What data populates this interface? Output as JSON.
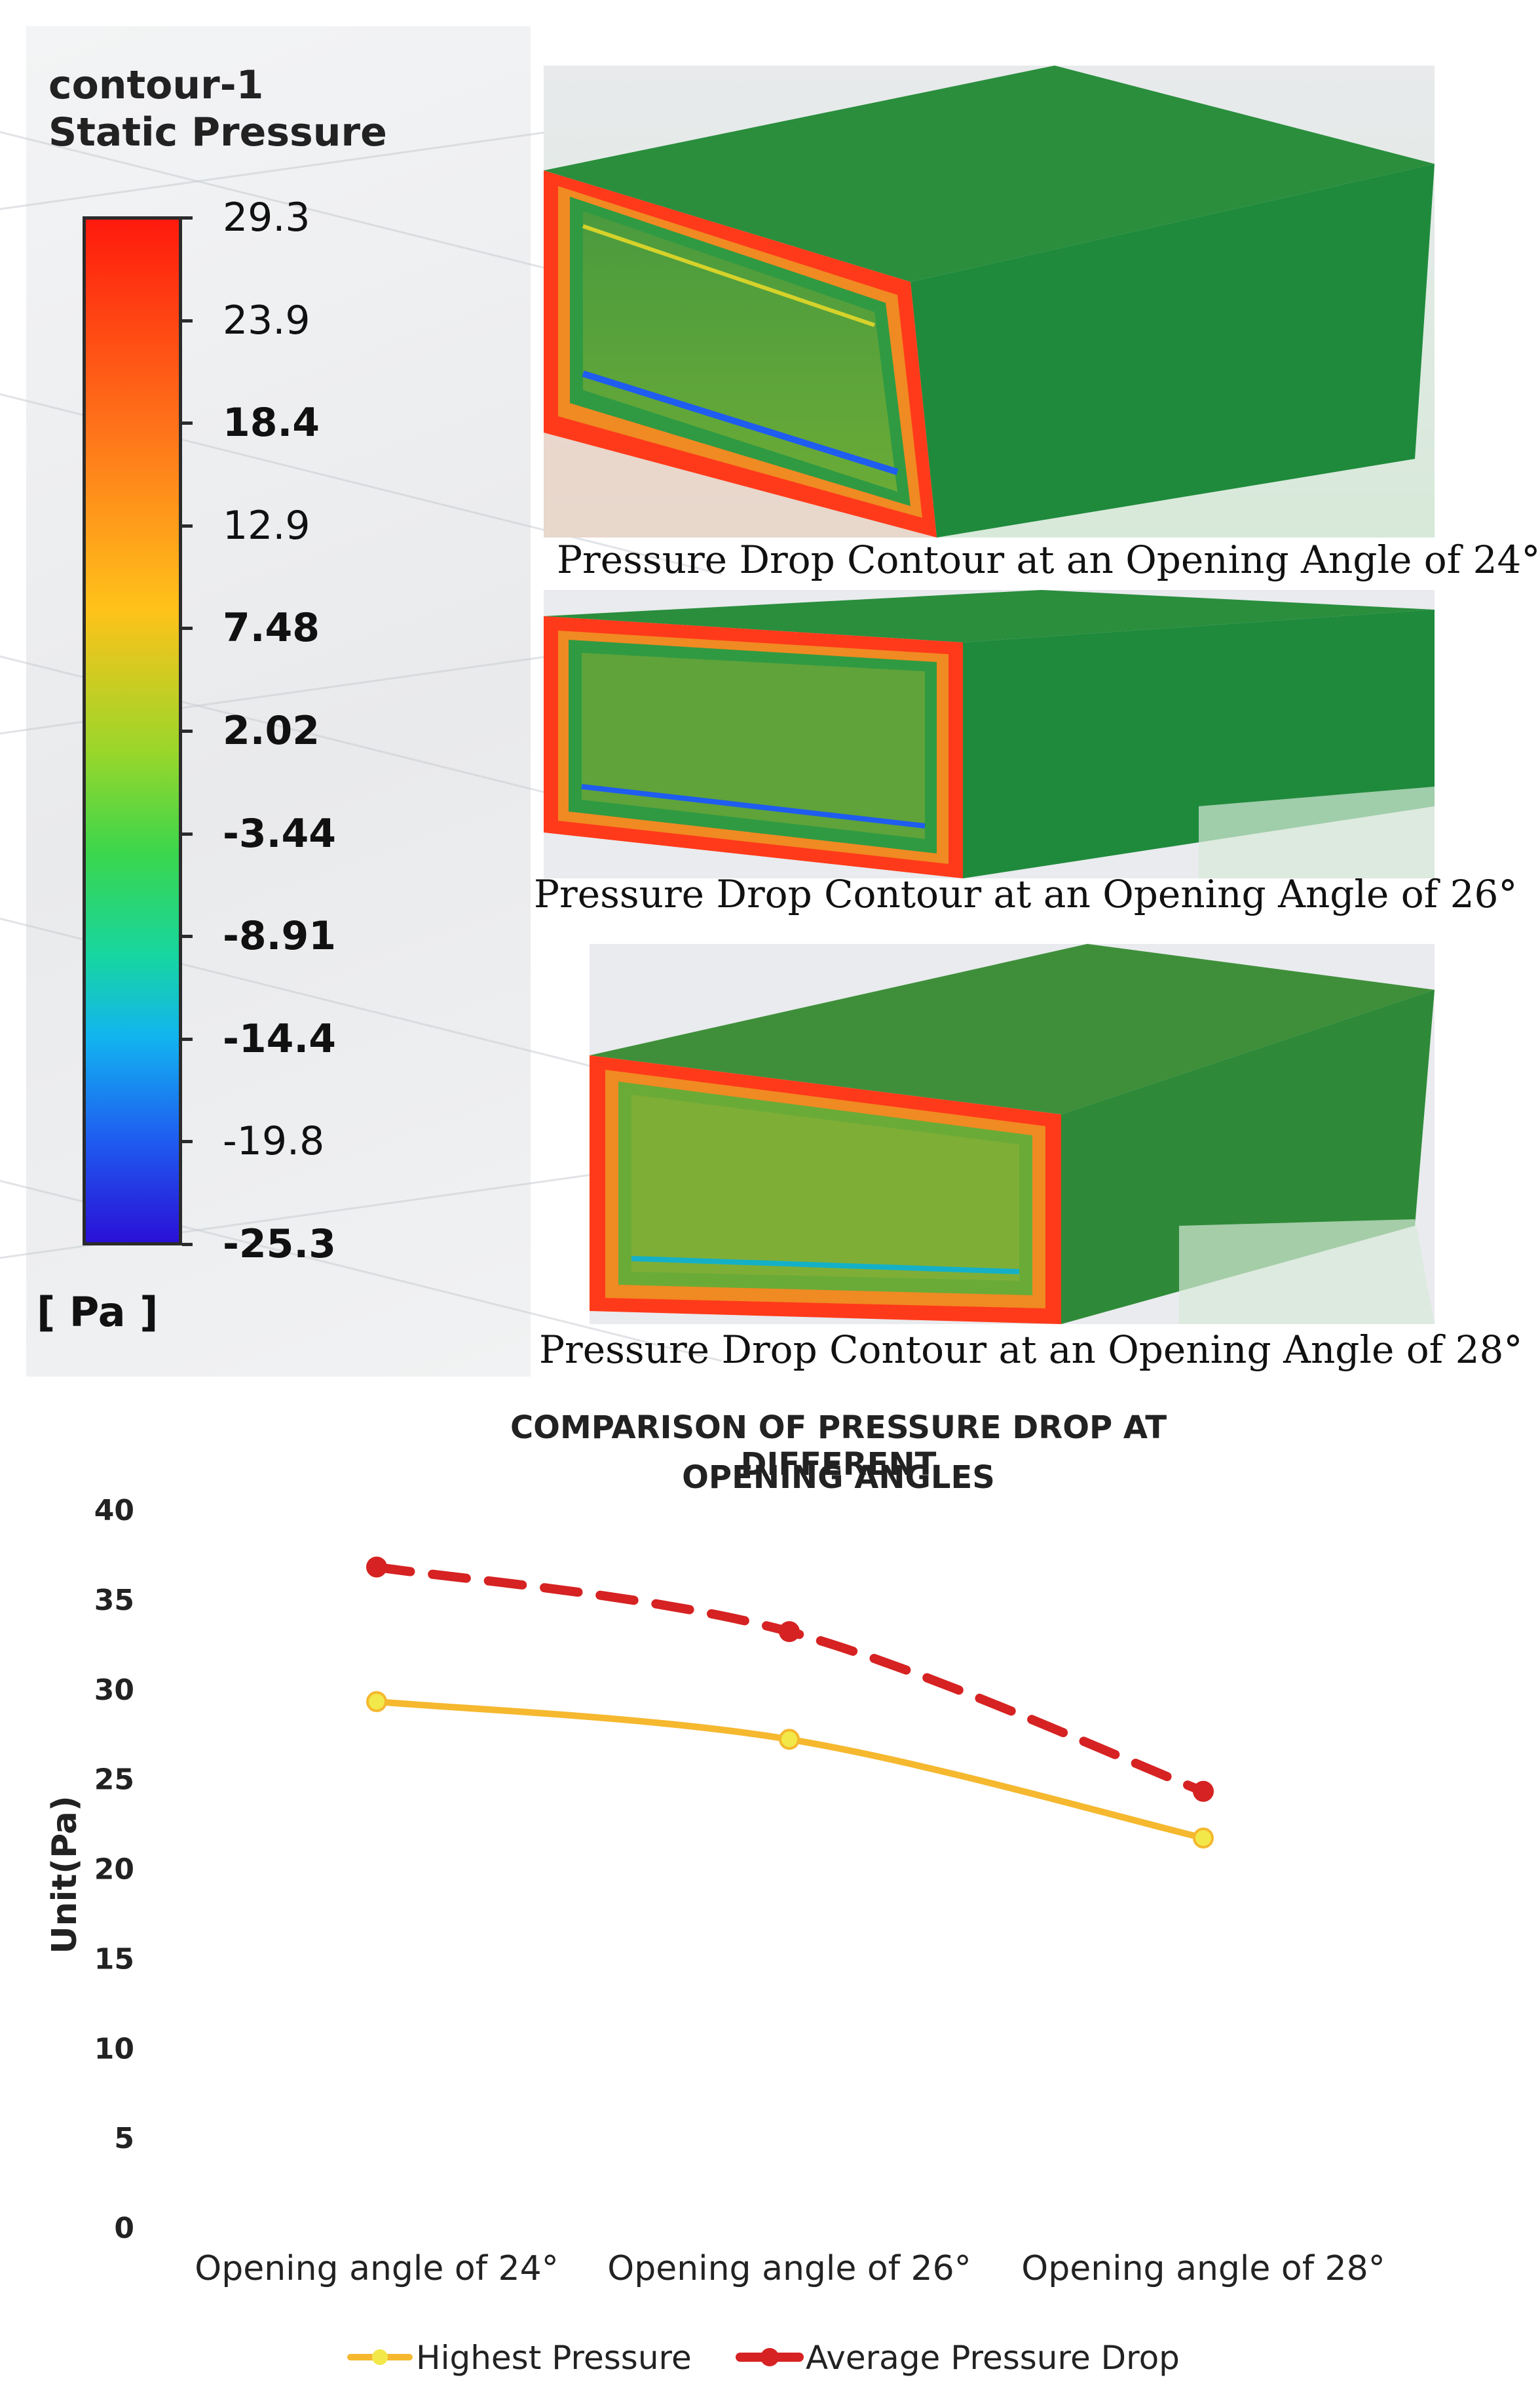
{
  "legend": {
    "title_line1": "contour-1",
    "title_line2": "Static Pressure",
    "unit": "[ Pa ]",
    "ticks": [
      "29.3",
      "23.9",
      "18.4",
      "12.9",
      "7.48",
      "2.02",
      "-3.44",
      "-8.91",
      "-14.4",
      "-19.8",
      "-25.3"
    ]
  },
  "contours": [
    {
      "caption": "Pressure Drop Contour at an Opening Angle of 24°"
    },
    {
      "caption": "Pressure Drop Contour at an Opening Angle of 26°"
    },
    {
      "caption": "Pressure Drop Contour at an Opening Angle of 28°"
    }
  ],
  "colors": {
    "highest": "#f5b82e",
    "average": "#d62222",
    "box_green": "#1f8a3c"
  },
  "chart_data": {
    "type": "line",
    "title": "COMPARISON OF PRESSURE DROP AT DIFFERENT OPENING ANGLES",
    "title_line1": "COMPARISON OF PRESSURE DROP AT DIFFERENT",
    "title_line2": "OPENING ANGLES",
    "ylabel": "Unit(Pa)",
    "ylim": [
      0,
      40
    ],
    "yticks": [
      "0",
      "5",
      "10",
      "15",
      "20",
      "25",
      "30",
      "35",
      "40"
    ],
    "categories": [
      "Opening angle of 24°",
      "Opening angle of 26°",
      "Opening angle of 28°"
    ],
    "series": [
      {
        "name": "Highest Pressure",
        "values": [
          29.3,
          27.2,
          21.7
        ],
        "style": "solid"
      },
      {
        "name": "Average Pressure Drop",
        "values": [
          36.8,
          33.2,
          24.3
        ],
        "style": "dashed"
      }
    ],
    "legend_position": "bottom",
    "grid": false
  }
}
